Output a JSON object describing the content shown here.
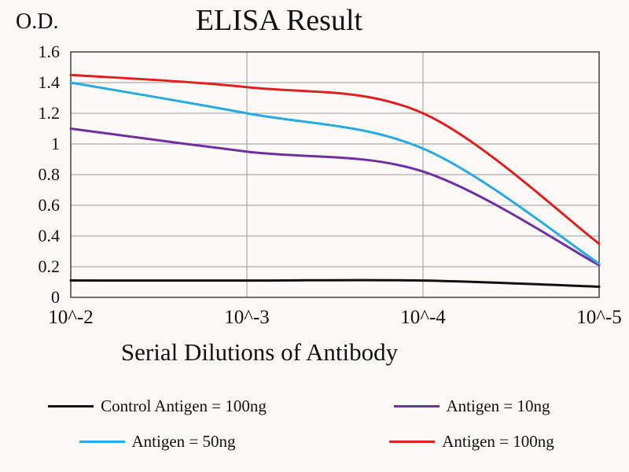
{
  "chart_data": {
    "type": "line",
    "title": "ELISA Result",
    "ylabel": "O.D.",
    "xlabel": "Serial Dilutions of Antibody",
    "x_ticks": [
      "10^-2",
      "10^-3",
      "10^-4",
      "10^-5"
    ],
    "y_ticks": [
      "0",
      "0.2",
      "0.4",
      "0.6",
      "0.8",
      "1",
      "1.2",
      "1.4",
      "1.6"
    ],
    "ylim": [
      0,
      1.6
    ],
    "grid": true,
    "legend_position": "bottom",
    "colors": {
      "grid": "#9a9a9a",
      "frame": "#4f4f4f",
      "background": "#fbfaf6"
    },
    "series": [
      {
        "name": "Control Antigen = 100ng",
        "color": "#111111",
        "values": [
          0.11,
          0.11,
          0.11,
          0.07
        ]
      },
      {
        "name": "Antigen = 10ng",
        "color": "#7030a0",
        "values": [
          1.1,
          0.95,
          0.82,
          0.21
        ]
      },
      {
        "name": "Antigen = 50ng",
        "color": "#29abe2",
        "values": [
          1.4,
          1.2,
          0.97,
          0.22
        ]
      },
      {
        "name": "Antigen = 100ng",
        "color": "#e02020",
        "values": [
          1.45,
          1.37,
          1.2,
          0.35
        ]
      }
    ]
  }
}
